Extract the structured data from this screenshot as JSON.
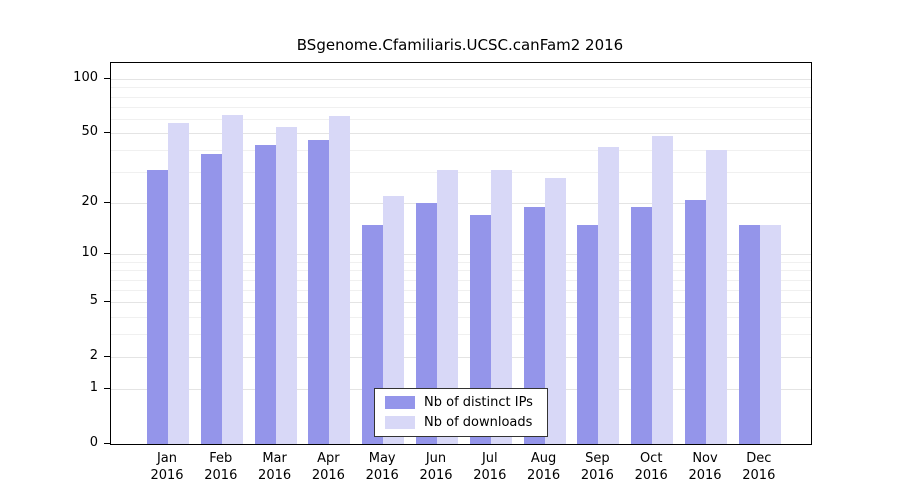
{
  "chart_data": {
    "type": "bar",
    "title": "BSgenome.Cfamiliaris.UCSC.canFam2 2016",
    "categories": [
      "Jan",
      "Feb",
      "Mar",
      "Apr",
      "May",
      "Jun",
      "Jul",
      "Aug",
      "Sep",
      "Oct",
      "Nov",
      "Dec"
    ],
    "year_label": "2016",
    "series": [
      {
        "name": "Nb of distinct IPs",
        "color": "#9495ea",
        "values": [
          31,
          38,
          43,
          46,
          15,
          20,
          17,
          19,
          15,
          19,
          21,
          15
        ]
      },
      {
        "name": "Nb of downloads",
        "color": "#d8d8f7",
        "values": [
          57,
          63,
          54,
          62,
          22,
          31,
          31,
          28,
          42,
          48,
          40,
          15
        ]
      }
    ],
    "yticks": [
      0,
      1,
      2,
      5,
      10,
      20,
      50,
      100
    ],
    "minor_gridlines": [
      1,
      2,
      3,
      4,
      5,
      6,
      7,
      8,
      9,
      10,
      20,
      30,
      40,
      50,
      60,
      70,
      80,
      90,
      100
    ],
    "ylim": [
      0,
      100
    ],
    "yscale": "log1p",
    "grid": true,
    "legend_position": "bottom-center",
    "xlabel": "",
    "ylabel": ""
  }
}
